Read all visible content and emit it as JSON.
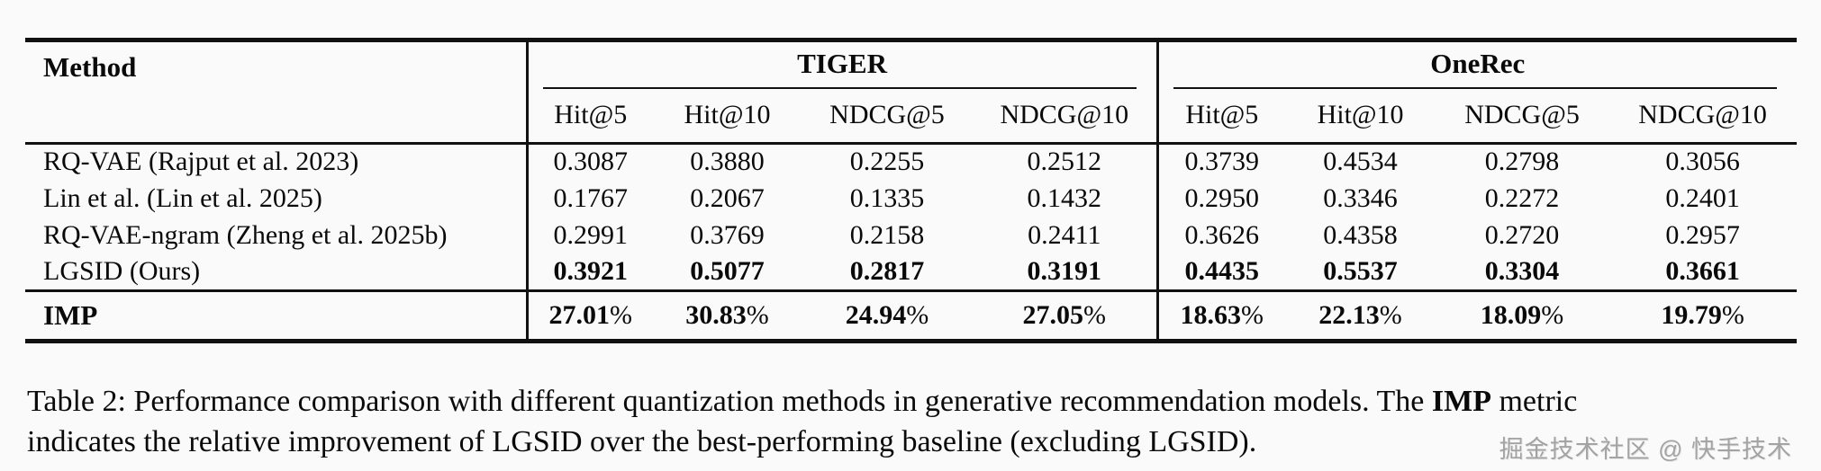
{
  "table": {
    "method_header": "Method",
    "groups": [
      {
        "label": "TIGER"
      },
      {
        "label": "OneRec"
      }
    ],
    "subheaders": [
      "Hit@5",
      "Hit@10",
      "NDCG@5",
      "NDCG@10",
      "Hit@5",
      "Hit@10",
      "NDCG@5",
      "NDCG@10"
    ],
    "rows": [
      {
        "method": "RQ-VAE (Rajput et al. 2023)",
        "values": [
          "0.3087",
          "0.3880",
          "0.2255",
          "0.2512",
          "0.3739",
          "0.4534",
          "0.2798",
          "0.3056"
        ]
      },
      {
        "method": "Lin et al. (Lin et al. 2025)",
        "values": [
          "0.1767",
          "0.2067",
          "0.1335",
          "0.1432",
          "0.2950",
          "0.3346",
          "0.2272",
          "0.2401"
        ]
      },
      {
        "method": "RQ-VAE-ngram (Zheng et al. 2025b)",
        "values": [
          "0.2991",
          "0.3769",
          "0.2158",
          "0.2411",
          "0.3626",
          "0.4358",
          "0.2720",
          "0.2957"
        ]
      },
      {
        "method": "LGSID (Ours)",
        "values": [
          "0.3921",
          "0.5077",
          "0.2817",
          "0.3191",
          "0.4435",
          "0.5537",
          "0.3304",
          "0.3661"
        ]
      }
    ],
    "imp_row": {
      "label": "IMP",
      "values": [
        "27.01",
        "30.83",
        "24.94",
        "27.05",
        "18.63",
        "22.13",
        "18.09",
        "19.79"
      ],
      "suffix": "%"
    }
  },
  "caption": {
    "part1": "Table 2: Performance comparison with different quantization methods in generative recommendation models. The ",
    "bold": "IMP",
    "part2": " metric",
    "part3": "indicates the relative improvement of LGSID over the best-performing baseline (excluding LGSID)."
  },
  "watermark": "掘金技术社区 @ 快手技术"
}
